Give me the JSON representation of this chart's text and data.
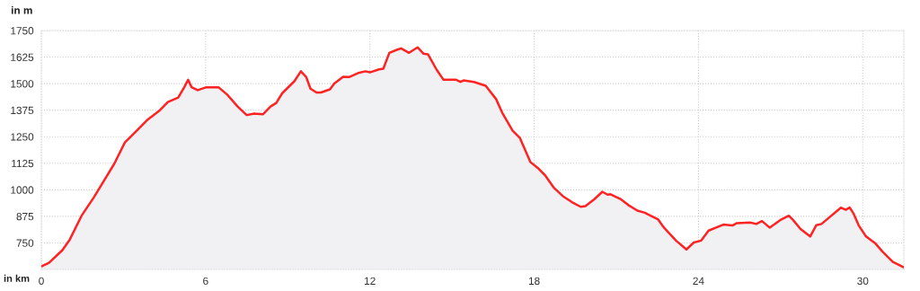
{
  "chart_data": {
    "type": "area",
    "ylabel": "in m",
    "xlabel": "in km",
    "xlim": [
      0,
      31.5
    ],
    "xticks": [
      0,
      6,
      12,
      18,
      24,
      30
    ],
    "ylim": [
      625,
      1750
    ],
    "yticks": [
      750,
      875,
      1000,
      1125,
      1250,
      1375,
      1500,
      1625,
      1750
    ],
    "grid": true,
    "line_style": "solid",
    "marker": "none",
    "series": [
      {
        "color": "#ff2222",
        "x": [
          0,
          0.28,
          0.77,
          1.04,
          1.47,
          1.91,
          2.24,
          2.67,
          3.05,
          3.43,
          3.86,
          4.3,
          4.62,
          5.0,
          5.22,
          5.36,
          5.49,
          5.71,
          6.03,
          6.47,
          6.79,
          7.17,
          7.5,
          7.77,
          8.1,
          8.37,
          8.58,
          8.8,
          9.24,
          9.48,
          9.67,
          9.83,
          10.05,
          10.21,
          10.54,
          10.7,
          11.02,
          11.24,
          11.57,
          11.84,
          12.0,
          12.33,
          12.49,
          12.71,
          12.98,
          13.14,
          13.43,
          13.74,
          13.96,
          14.12,
          14.44,
          14.69,
          15.15,
          15.31,
          15.42,
          15.8,
          16.23,
          16.61,
          16.83,
          17.21,
          17.48,
          17.86,
          18.13,
          18.4,
          18.73,
          19.05,
          19.38,
          19.7,
          19.87,
          20.19,
          20.49,
          20.68,
          20.79,
          21.17,
          21.44,
          21.77,
          22.04,
          22.53,
          22.74,
          23.18,
          23.56,
          23.83,
          24.1,
          24.37,
          24.91,
          25.24,
          25.4,
          25.89,
          26.11,
          26.32,
          26.6,
          26.98,
          27.3,
          27.46,
          27.73,
          28.08,
          28.3,
          28.49,
          28.62,
          29.2,
          29.38,
          29.52,
          29.66,
          29.85,
          30.12,
          30.45,
          30.72,
          31.1,
          31.48
        ],
        "values": [
          639,
          656,
          716,
          766,
          878,
          963,
          1033,
          1124,
          1223,
          1272,
          1328,
          1371,
          1413,
          1434,
          1483,
          1518,
          1483,
          1469,
          1483,
          1483,
          1448,
          1392,
          1352,
          1359,
          1356,
          1392,
          1409,
          1455,
          1511,
          1558,
          1532,
          1476,
          1458,
          1458,
          1473,
          1500,
          1532,
          1531,
          1550,
          1558,
          1553,
          1567,
          1570,
          1645,
          1659,
          1666,
          1645,
          1671,
          1641,
          1638,
          1565,
          1518,
          1518,
          1508,
          1515,
          1508,
          1490,
          1427,
          1364,
          1279,
          1244,
          1131,
          1103,
          1068,
          1008,
          970,
          942,
          920,
          923,
          955,
          991,
          977,
          979,
          955,
          928,
          902,
          892,
          860,
          822,
          761,
          719,
          752,
          761,
          808,
          836,
          832,
          843,
          846,
          839,
          853,
          822,
          857,
          878,
          857,
          815,
          780,
          833,
          839,
          853,
          916,
          906,
          917,
          889,
          833,
          780,
          749,
          709,
          660,
          636
        ]
      }
    ]
  }
}
